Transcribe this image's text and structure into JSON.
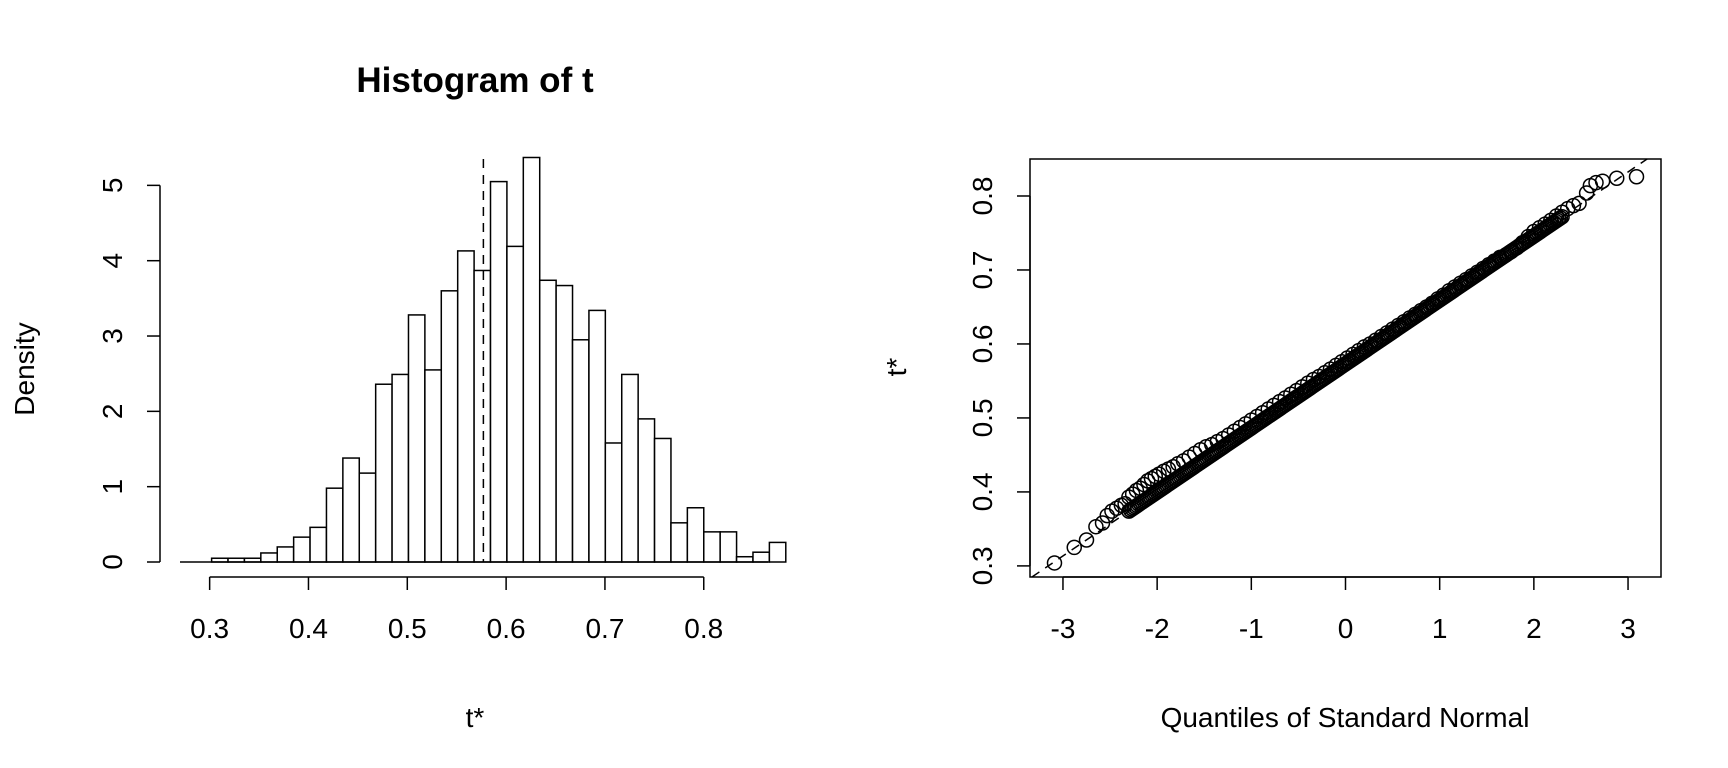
{
  "chart_data": [
    {
      "type": "histogram",
      "title": "Histogram of t",
      "xlabel": "t*",
      "ylabel": "Density",
      "xlim": [
        0.27,
        0.865
      ],
      "ylim": [
        0,
        5.35
      ],
      "x_ticks": [
        "0.3",
        "0.4",
        "0.5",
        "0.6",
        "0.7",
        "0.8"
      ],
      "y_ticks": [
        "0",
        "1",
        "2",
        "3",
        "4",
        "5"
      ],
      "bin_width": 0.0166,
      "bins": [
        {
          "x0": 0.302,
          "density": 0.05
        },
        {
          "x0": 0.3186,
          "density": 0.05
        },
        {
          "x0": 0.3352,
          "density": 0.05
        },
        {
          "x0": 0.3518,
          "density": 0.12
        },
        {
          "x0": 0.3684,
          "density": 0.2
        },
        {
          "x0": 0.385,
          "density": 0.33
        },
        {
          "x0": 0.4016,
          "density": 0.46
        },
        {
          "x0": 0.4182,
          "density": 0.98
        },
        {
          "x0": 0.4348,
          "density": 1.38
        },
        {
          "x0": 0.4514,
          "density": 1.18
        },
        {
          "x0": 0.468,
          "density": 2.36
        },
        {
          "x0": 0.4846,
          "density": 2.49
        },
        {
          "x0": 0.5012,
          "density": 3.28
        },
        {
          "x0": 0.5178,
          "density": 2.55
        },
        {
          "x0": 0.5344,
          "density": 3.6
        },
        {
          "x0": 0.551,
          "density": 4.13
        },
        {
          "x0": 0.5676,
          "density": 3.87
        },
        {
          "x0": 0.5842,
          "density": 5.05
        },
        {
          "x0": 0.6008,
          "density": 4.19
        },
        {
          "x0": 0.6174,
          "density": 5.37
        },
        {
          "x0": 0.634,
          "density": 3.74
        },
        {
          "x0": 0.6506,
          "density": 3.67
        },
        {
          "x0": 0.6672,
          "density": 2.95
        },
        {
          "x0": 0.6838,
          "density": 3.34
        },
        {
          "x0": 0.7004,
          "density": 1.58
        },
        {
          "x0": 0.717,
          "density": 2.49
        },
        {
          "x0": 0.7336,
          "density": 1.9
        },
        {
          "x0": 0.7502,
          "density": 1.64
        },
        {
          "x0": 0.7668,
          "density": 0.52
        },
        {
          "x0": 0.7834,
          "density": 0.72
        },
        {
          "x0": 0.8,
          "density": 0.4
        },
        {
          "x0": 0.8166,
          "density": 0.4
        },
        {
          "x0": 0.8332,
          "density": 0.07
        },
        {
          "x0": 0.8498,
          "density": 0.13
        },
        {
          "x0": 0.8664,
          "density": 0.26
        }
      ],
      "reference_line": {
        "x": 0.577,
        "style": "dashed"
      }
    },
    {
      "type": "scatter",
      "subtype": "normal-qq",
      "xlabel": "Quantiles of Standard Normal",
      "ylabel": "t*",
      "xlim": [
        -3.35,
        3.35
      ],
      "ylim": [
        0.285,
        0.85
      ],
      "x_ticks": [
        "-3",
        "-2",
        "-1",
        "0",
        "1",
        "2",
        "3"
      ],
      "y_ticks": [
        "0.3",
        "0.4",
        "0.5",
        "0.6",
        "0.7",
        "0.8"
      ],
      "reference_line": {
        "intercept": 0.573,
        "slope": 0.0865,
        "style": "dashed"
      },
      "points": {
        "x": [
          -3.09,
          -2.88,
          -2.75,
          -2.65,
          -2.58,
          -2.53,
          -2.48,
          -2.43,
          -2.38,
          -2.34,
          -2.3,
          -2.26,
          -2.22,
          -2.18,
          -2.14,
          -2.1,
          -2.06,
          -2.02,
          -1.98,
          -1.93,
          -1.88,
          -1.83,
          -1.78,
          -1.72,
          -1.66,
          -1.6,
          -1.54,
          -1.48,
          -1.42,
          -1.36,
          -1.3,
          -1.24,
          -1.18,
          -1.12,
          -1.06,
          -1.0,
          -0.94,
          -0.88,
          -0.82,
          -0.76,
          -0.7,
          -0.64,
          -0.58,
          -0.52,
          -0.46,
          -0.4,
          -0.34,
          -0.28,
          -0.22,
          -0.16,
          -0.1,
          -0.04,
          0.02,
          0.08,
          0.14,
          0.2,
          0.26,
          0.32,
          0.38,
          0.44,
          0.5,
          0.56,
          0.62,
          0.68,
          0.74,
          0.8,
          0.86,
          0.92,
          0.98,
          1.04,
          1.1,
          1.16,
          1.22,
          1.28,
          1.34,
          1.4,
          1.46,
          1.52,
          1.58,
          1.64,
          1.7,
          1.76,
          1.82,
          1.88,
          1.94,
          2.0,
          2.06,
          2.12,
          2.18,
          2.24,
          2.3,
          2.36,
          2.42,
          2.48,
          2.56,
          2.6,
          2.66,
          2.73,
          2.88,
          3.09
        ],
        "y": [
          0.304,
          0.325,
          0.335,
          0.353,
          0.358,
          0.368,
          0.374,
          0.378,
          0.382,
          0.384,
          0.393,
          0.397,
          0.402,
          0.405,
          0.41,
          0.415,
          0.418,
          0.421,
          0.424,
          0.428,
          0.431,
          0.434,
          0.438,
          0.442,
          0.447,
          0.452,
          0.457,
          0.461,
          0.464,
          0.468,
          0.472,
          0.477,
          0.482,
          0.487,
          0.492,
          0.497,
          0.502,
          0.507,
          0.512,
          0.517,
          0.522,
          0.527,
          0.532,
          0.537,
          0.542,
          0.547,
          0.552,
          0.556,
          0.561,
          0.566,
          0.571,
          0.576,
          0.581,
          0.586,
          0.591,
          0.596,
          0.6,
          0.605,
          0.61,
          0.615,
          0.62,
          0.625,
          0.63,
          0.635,
          0.64,
          0.645,
          0.65,
          0.655,
          0.661,
          0.666,
          0.672,
          0.677,
          0.682,
          0.687,
          0.692,
          0.697,
          0.702,
          0.707,
          0.712,
          0.717,
          0.72,
          0.725,
          0.73,
          0.737,
          0.745,
          0.752,
          0.757,
          0.762,
          0.767,
          0.773,
          0.778,
          0.783,
          0.787,
          0.79,
          0.804,
          0.814,
          0.818,
          0.82,
          0.824,
          0.826
        ]
      }
    }
  ]
}
